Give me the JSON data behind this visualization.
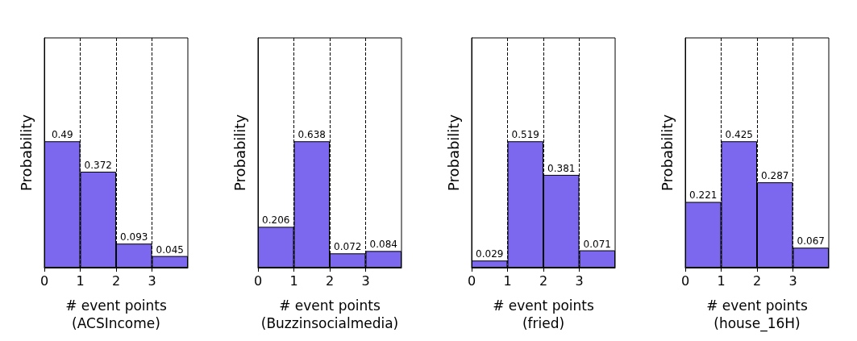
{
  "chart_data": [
    {
      "type": "bar",
      "x": [
        0.5,
        1.5,
        2.5,
        3.5
      ],
      "values": [
        0.49,
        0.372,
        0.093,
        0.045
      ],
      "color": "#7b68ee",
      "xlim": [
        0,
        4
      ],
      "xticks": [
        0,
        1,
        2,
        3
      ],
      "xlabel": "# event points\n(ACSIncome)",
      "ylabel": "Probability",
      "grid": "x",
      "data_labels": true,
      "tick_labels": "x"
    },
    {
      "type": "bar",
      "x": [
        0.5,
        1.5,
        2.5,
        3.5
      ],
      "values": [
        0.206,
        0.638,
        0.072,
        0.084
      ],
      "color": "#7b68ee",
      "xlim": [
        0,
        4
      ],
      "xticks": [
        0,
        1,
        2,
        3
      ],
      "xlabel": "# event points\n(Buzzinsocialmedia)",
      "ylabel": "Probability",
      "grid": "x",
      "data_labels": true,
      "tick_labels": "x"
    },
    {
      "type": "bar",
      "x": [
        0.5,
        1.5,
        2.5,
        3.5
      ],
      "values": [
        0.029,
        0.519,
        0.381,
        0.071
      ],
      "color": "#7b68ee",
      "xlim": [
        0,
        4
      ],
      "xticks": [
        0,
        1,
        2,
        3
      ],
      "xlabel": "# event points\n(fried)",
      "ylabel": "Probability",
      "grid": "x",
      "data_labels": true,
      "tick_labels": "x"
    },
    {
      "type": "bar",
      "x": [
        0.5,
        1.5,
        2.5,
        3.5
      ],
      "values": [
        0.221,
        0.425,
        0.287,
        0.067
      ],
      "color": "#7b68ee",
      "xlim": [
        0,
        4
      ],
      "xticks": [
        0,
        1,
        2,
        3
      ],
      "xlabel": "# event points\n(house_16H)",
      "ylabel": "Probability",
      "grid": "x",
      "data_labels": true,
      "tick_labels": "x"
    }
  ]
}
